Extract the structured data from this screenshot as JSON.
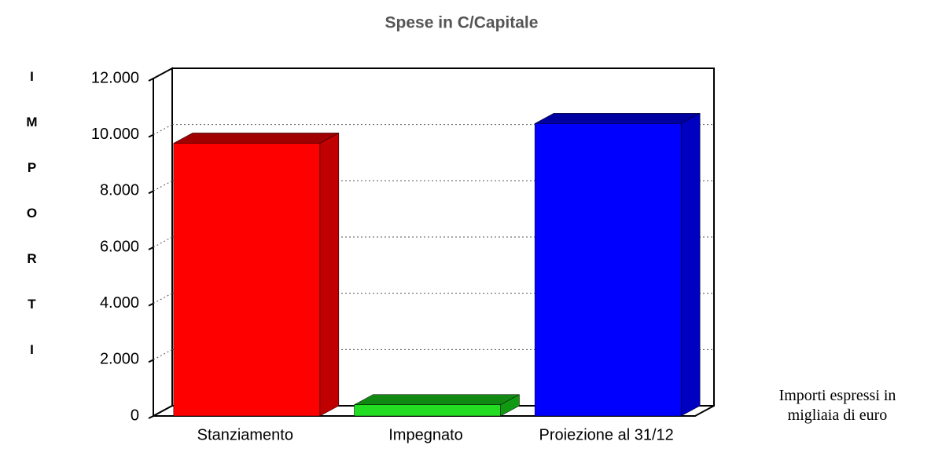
{
  "chart_data": {
    "type": "bar3d",
    "title": "Spese in C/Capitale",
    "y_label": "IMPORTI",
    "note": "Importi espressi in migliaia di euro",
    "categories": [
      "Stanziamento",
      "Impegnato",
      "Proiezione al 31/12"
    ],
    "values": [
      9700,
      400,
      10400
    ],
    "colors": [
      "#ff0000",
      "#22dd22",
      "#0000ff"
    ],
    "ylim": [
      0,
      12000
    ],
    "yticks": [
      0,
      {
        "value": 2000,
        "label": "2.000"
      },
      {
        "value": 4000,
        "label": "4.000"
      },
      {
        "value": 6000,
        "label": "6.000"
      },
      {
        "value": 8000,
        "label": "8.000"
      },
      {
        "value": 10000,
        "label": "10.000"
      },
      {
        "value": 12000,
        "label": "12.000"
      }
    ],
    "grid": true
  }
}
